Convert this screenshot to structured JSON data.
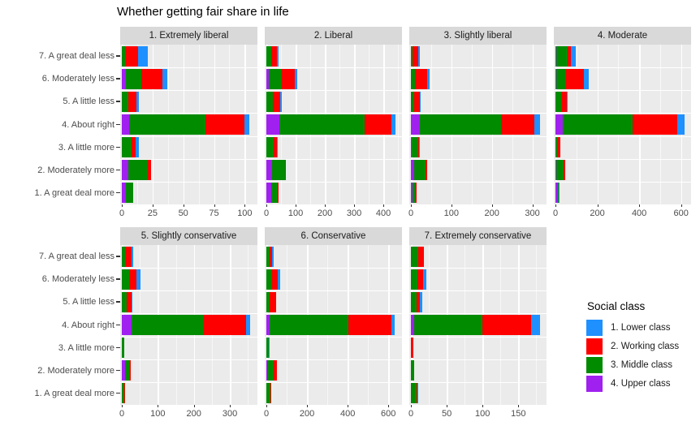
{
  "title": "Whether getting fair share in life",
  "colors": {
    "lower": "#1E90FF",
    "working": "#FF0000",
    "middle": "#008B00",
    "upper": "#A020F0",
    "panel_bg": "#EBEBEB",
    "strip_bg": "#D9D9D9",
    "axis_text": "#4D4D4D"
  },
  "legend": {
    "title": "Social class",
    "items": [
      {
        "label": "1. Lower class",
        "key": "lower",
        "color": "#1E90FF"
      },
      {
        "label": "2. Working class",
        "key": "working",
        "color": "#FF0000"
      },
      {
        "label": "3. Middle class",
        "key": "middle",
        "color": "#008B00"
      },
      {
        "label": "4. Upper class",
        "key": "upper",
        "color": "#A020F0"
      }
    ]
  },
  "chart_data": {
    "type": "bar",
    "orientation": "horizontal",
    "stacked": true,
    "stack_order_left_to_right": [
      "upper",
      "middle",
      "working",
      "lower"
    ],
    "categories": [
      "7. A great deal less",
      "6. Moderately less",
      "5. A little less",
      "4. About right",
      "3. A little more",
      "2. Moderately more",
      "1. A great deal more"
    ],
    "facets": [
      {
        "label": "1. Extremely liberal",
        "ticks": [
          0,
          25,
          50,
          75,
          100
        ],
        "xmax": 109,
        "values": [
          {
            "lower": 8,
            "working": 10,
            "middle": 3,
            "upper": 0
          },
          {
            "lower": 4,
            "working": 17,
            "middle": 13,
            "upper": 3
          },
          {
            "lower": 2,
            "working": 7,
            "middle": 5,
            "upper": 0
          },
          {
            "lower": 4,
            "working": 32,
            "middle": 62,
            "upper": 6
          },
          {
            "lower": 3,
            "working": 3,
            "middle": 8,
            "upper": 0
          },
          {
            "lower": 0,
            "working": 3,
            "middle": 16,
            "upper": 5
          },
          {
            "lower": 0,
            "working": 0,
            "middle": 6,
            "upper": 3
          }
        ]
      },
      {
        "label": "2. Liberal",
        "ticks": [
          0,
          100,
          200,
          300,
          400
        ],
        "xmax": 458,
        "values": [
          {
            "lower": 6,
            "working": 20,
            "middle": 16,
            "upper": 1
          },
          {
            "lower": 9,
            "working": 44,
            "middle": 44,
            "upper": 9
          },
          {
            "lower": 7,
            "working": 25,
            "middle": 21,
            "upper": 0
          },
          {
            "lower": 13,
            "working": 90,
            "middle": 293,
            "upper": 44
          },
          {
            "lower": 3,
            "working": 13,
            "middle": 23,
            "upper": 1
          },
          {
            "lower": 0,
            "working": 3,
            "middle": 44,
            "upper": 20
          },
          {
            "lower": 0,
            "working": 3,
            "middle": 21,
            "upper": 18
          }
        ]
      },
      {
        "label": "3. Slightly liberal",
        "ticks": [
          0,
          100,
          200,
          300
        ],
        "xmax": 331,
        "values": [
          {
            "lower": 4,
            "working": 14,
            "middle": 4,
            "upper": 0
          },
          {
            "lower": 7,
            "working": 30,
            "middle": 10,
            "upper": 0
          },
          {
            "lower": 2,
            "working": 15,
            "middle": 8,
            "upper": 0
          },
          {
            "lower": 13,
            "working": 82,
            "middle": 200,
            "upper": 23
          },
          {
            "lower": 1,
            "working": 2,
            "middle": 17,
            "upper": 2
          },
          {
            "lower": 0,
            "working": 3,
            "middle": 29,
            "upper": 8
          },
          {
            "lower": 0,
            "working": 2,
            "middle": 7,
            "upper": 5
          }
        ]
      },
      {
        "label": "4. Moderate",
        "ticks": [
          0,
          200,
          400,
          600
        ],
        "xmax": 640,
        "values": [
          {
            "lower": 24,
            "working": 15,
            "middle": 56,
            "upper": 2
          },
          {
            "lower": 24,
            "working": 86,
            "middle": 48,
            "upper": 2
          },
          {
            "lower": 3,
            "working": 26,
            "middle": 30,
            "upper": 0
          },
          {
            "lower": 33,
            "working": 212,
            "middle": 337,
            "upper": 33
          },
          {
            "lower": 0,
            "working": 9,
            "middle": 13,
            "upper": 0
          },
          {
            "lower": 0,
            "working": 8,
            "middle": 35,
            "upper": 2
          },
          {
            "lower": 3,
            "working": 2,
            "middle": 2,
            "upper": 13
          }
        ]
      },
      {
        "label": "5. Slightly conservative",
        "ticks": [
          0,
          100,
          200,
          300
        ],
        "xmax": 372,
        "values": [
          {
            "lower": 6,
            "working": 14,
            "middle": 12,
            "upper": 0
          },
          {
            "lower": 11,
            "working": 21,
            "middle": 20,
            "upper": 0
          },
          {
            "lower": 1,
            "working": 12,
            "middle": 14,
            "upper": 0
          },
          {
            "lower": 13,
            "working": 117,
            "middle": 201,
            "upper": 26
          },
          {
            "lower": 0,
            "working": 0,
            "middle": 6,
            "upper": 0
          },
          {
            "lower": 0,
            "working": 2,
            "middle": 14,
            "upper": 9
          },
          {
            "lower": 0,
            "working": 2,
            "middle": 6,
            "upper": 0
          }
        ]
      },
      {
        "label": "6. Conservative",
        "ticks": [
          0,
          200,
          400,
          600
        ],
        "xmax": 659,
        "values": [
          {
            "lower": 8,
            "working": 13,
            "middle": 16,
            "upper": 0
          },
          {
            "lower": 11,
            "working": 29,
            "middle": 27,
            "upper": 0
          },
          {
            "lower": 0,
            "working": 29,
            "middle": 17,
            "upper": 0
          },
          {
            "lower": 16,
            "working": 213,
            "middle": 387,
            "upper": 17
          },
          {
            "lower": 2,
            "working": 0,
            "middle": 13,
            "upper": 0
          },
          {
            "lower": 0,
            "working": 16,
            "middle": 33,
            "upper": 4
          },
          {
            "lower": 0,
            "working": 4,
            "middle": 20,
            "upper": 1
          }
        ]
      },
      {
        "label": "7. Extremely conservative",
        "ticks": [
          0,
          50,
          100,
          150
        ],
        "xmax": 187,
        "values": [
          {
            "lower": 0,
            "working": 8,
            "middle": 10,
            "upper": 0
          },
          {
            "lower": 4,
            "working": 8,
            "middle": 9,
            "upper": 0
          },
          {
            "lower": 4,
            "working": 4,
            "middle": 8,
            "upper": 0
          },
          {
            "lower": 12,
            "working": 68,
            "middle": 95,
            "upper": 5
          },
          {
            "lower": 0,
            "working": 3,
            "middle": 0,
            "upper": 0
          },
          {
            "lower": 0,
            "working": 0,
            "middle": 5,
            "upper": 0
          },
          {
            "lower": 1,
            "working": 1,
            "middle": 8,
            "upper": 0
          }
        ]
      }
    ]
  }
}
